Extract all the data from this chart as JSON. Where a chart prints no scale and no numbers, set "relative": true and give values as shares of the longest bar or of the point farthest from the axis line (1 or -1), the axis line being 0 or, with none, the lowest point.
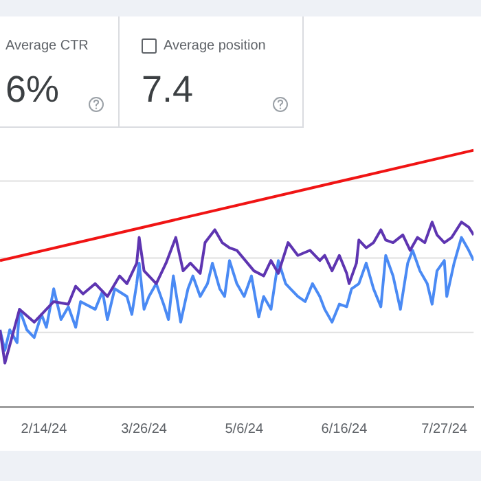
{
  "chart_data": [
    {
      "type": "other",
      "title": "Average CTR",
      "annotations": [
        "6%"
      ]
    },
    {
      "type": "other",
      "title": "Average position",
      "annotations": [
        "7.4"
      ]
    },
    {
      "type": "line",
      "relative": true,
      "tick_labels": "x",
      "legend": false,
      "marker": "none",
      "line_style": "solid",
      "xlim": [
        "2024-01-27",
        "2024-08-08"
      ],
      "xticks": [
        {
          "value": "2024-02-14",
          "label": "2/14/24"
        },
        {
          "value": "2024-03-26",
          "label": "3/26/24"
        },
        {
          "value": "2024-05-06",
          "label": "5/6/24"
        },
        {
          "value": "2024-06-16",
          "label": "6/16/24"
        },
        {
          "value": "2024-07-27",
          "label": "7/27/24"
        }
      ],
      "series": [
        {
          "color": "#5e35b1",
          "x": [
            "2024-01-27",
            "2024-01-29",
            "2024-02-04",
            "2024-02-10",
            "2024-02-18",
            "2024-02-24",
            "2024-02-27",
            "2024-03-01",
            "2024-03-06",
            "2024-03-11",
            "2024-03-16",
            "2024-03-19",
            "2024-03-23",
            "2024-03-24",
            "2024-03-26",
            "2024-03-31",
            "2024-04-04",
            "2024-04-08",
            "2024-04-11",
            "2024-04-14",
            "2024-04-18",
            "2024-04-20",
            "2024-04-24",
            "2024-04-27",
            "2024-04-30",
            "2024-05-03",
            "2024-05-10",
            "2024-05-14",
            "2024-05-17",
            "2024-05-20",
            "2024-05-24",
            "2024-05-28",
            "2024-06-02",
            "2024-06-06",
            "2024-06-08",
            "2024-06-11",
            "2024-06-14",
            "2024-06-17",
            "2024-06-18",
            "2024-06-21",
            "2024-06-22",
            "2024-06-25",
            "2024-06-28",
            "2024-07-01",
            "2024-07-03",
            "2024-07-06",
            "2024-07-10",
            "2024-07-13",
            "2024-07-16",
            "2024-07-19",
            "2024-07-22",
            "2024-07-24",
            "2024-07-27",
            "2024-07-30",
            "2024-08-03",
            "2024-08-06",
            "2024-08-08"
          ],
          "values": [
            0.3,
            0.17,
            0.38,
            0.33,
            0.41,
            0.4,
            0.47,
            0.44,
            0.48,
            0.43,
            0.51,
            0.48,
            0.56,
            0.66,
            0.53,
            0.48,
            0.56,
            0.66,
            0.53,
            0.56,
            0.52,
            0.64,
            0.69,
            0.64,
            0.62,
            0.61,
            0.53,
            0.51,
            0.57,
            0.52,
            0.64,
            0.59,
            0.61,
            0.57,
            0.59,
            0.53,
            0.59,
            0.52,
            0.48,
            0.56,
            0.65,
            0.62,
            0.64,
            0.69,
            0.65,
            0.64,
            0.67,
            0.61,
            0.66,
            0.64,
            0.72,
            0.67,
            0.64,
            0.66,
            0.72,
            0.7,
            0.67
          ]
        },
        {
          "color": "#4a8af4",
          "x": [
            "2024-01-27",
            "2024-01-29",
            "2024-01-31",
            "2024-02-03",
            "2024-02-04",
            "2024-02-07",
            "2024-02-10",
            "2024-02-13",
            "2024-02-15",
            "2024-02-18",
            "2024-02-21",
            "2024-02-24",
            "2024-02-27",
            "2024-02-29",
            "2024-03-06",
            "2024-03-09",
            "2024-03-11",
            "2024-03-14",
            "2024-03-19",
            "2024-03-21",
            "2024-03-23",
            "2024-03-24",
            "2024-03-26",
            "2024-03-28",
            "2024-03-31",
            "2024-04-03",
            "2024-04-05",
            "2024-04-07",
            "2024-04-10",
            "2024-04-13",
            "2024-04-15",
            "2024-04-18",
            "2024-04-21",
            "2024-04-23",
            "2024-04-26",
            "2024-04-28",
            "2024-04-30",
            "2024-05-03",
            "2024-05-06",
            "2024-05-09",
            "2024-05-12",
            "2024-05-14",
            "2024-05-17",
            "2024-05-20",
            "2024-05-23",
            "2024-05-25",
            "2024-05-28",
            "2024-05-31",
            "2024-06-03",
            "2024-06-06",
            "2024-06-08",
            "2024-06-11",
            "2024-06-14",
            "2024-06-17",
            "2024-06-19",
            "2024-06-22",
            "2024-06-25",
            "2024-06-28",
            "2024-07-01",
            "2024-07-03",
            "2024-07-06",
            "2024-07-09",
            "2024-07-12",
            "2024-07-14",
            "2024-07-17",
            "2024-07-20",
            "2024-07-22",
            "2024-07-24",
            "2024-07-27",
            "2024-07-28",
            "2024-07-31",
            "2024-08-03",
            "2024-08-06",
            "2024-08-08"
          ],
          "values": [
            0.3,
            0.22,
            0.3,
            0.25,
            0.38,
            0.3,
            0.27,
            0.36,
            0.31,
            0.46,
            0.34,
            0.39,
            0.31,
            0.41,
            0.38,
            0.45,
            0.34,
            0.46,
            0.43,
            0.36,
            0.48,
            0.56,
            0.38,
            0.43,
            0.48,
            0.4,
            0.34,
            0.51,
            0.33,
            0.46,
            0.51,
            0.43,
            0.48,
            0.56,
            0.46,
            0.43,
            0.57,
            0.48,
            0.43,
            0.51,
            0.35,
            0.43,
            0.38,
            0.57,
            0.48,
            0.46,
            0.43,
            0.41,
            0.48,
            0.43,
            0.38,
            0.33,
            0.4,
            0.39,
            0.46,
            0.48,
            0.56,
            0.46,
            0.39,
            0.59,
            0.51,
            0.38,
            0.56,
            0.61,
            0.53,
            0.48,
            0.4,
            0.53,
            0.57,
            0.43,
            0.56,
            0.66,
            0.61,
            0.57
          ]
        },
        {
          "color": "#f01414",
          "x": [
            "2024-01-27",
            "2024-08-08"
          ],
          "values": [
            0.57,
            1
          ]
        }
      ],
      "ref_lines": [
        {
          "axis": "y",
          "value": 0.29,
          "color": "#e0e0e0"
        },
        {
          "axis": "y",
          "value": 0.58,
          "color": "#e0e0e0"
        },
        {
          "axis": "y",
          "value": 0.88,
          "color": "#e0e0e0"
        }
      ]
    }
  ]
}
